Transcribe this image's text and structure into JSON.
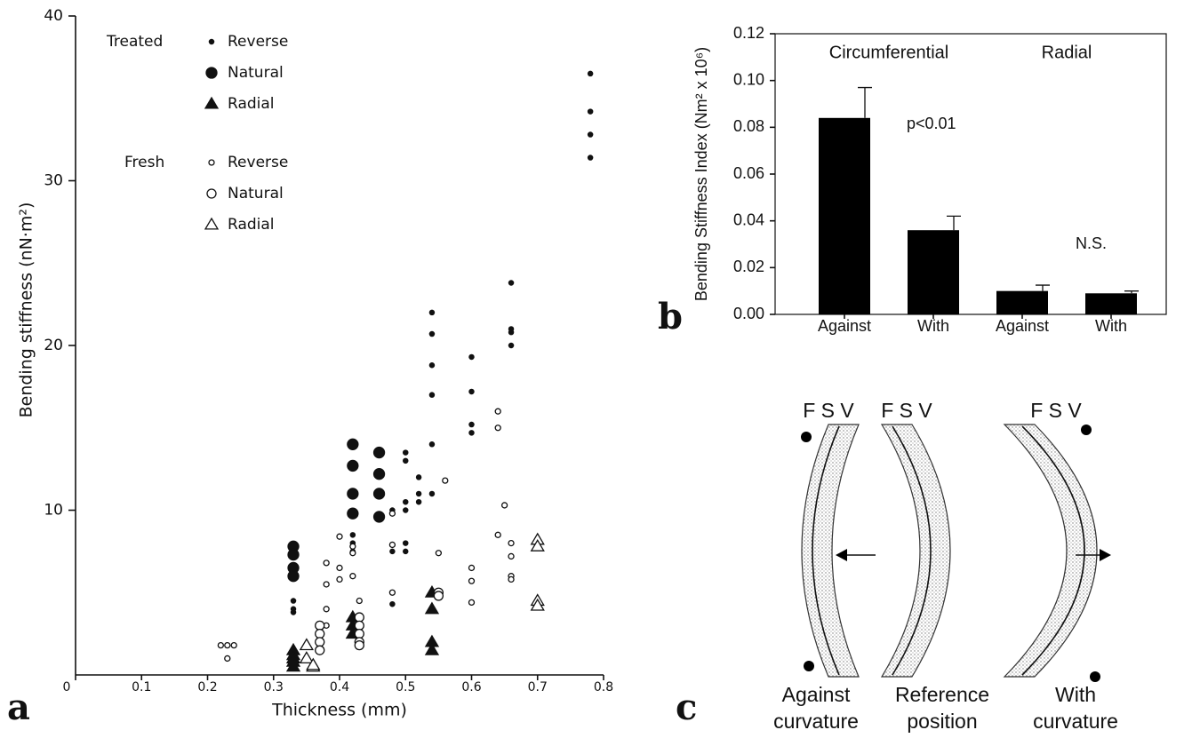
{
  "panel_labels": [
    "a",
    "b",
    "c"
  ],
  "chart_data": [
    {
      "type": "scatter",
      "xlabel": "Thickness (mm)",
      "ylabel": "Bending stiffness (nN·m²)",
      "xlim": [
        0,
        0.8
      ],
      "xticks": [
        0,
        0.1,
        0.2,
        0.3,
        0.4,
        0.5,
        0.6,
        0.7,
        0.8
      ],
      "ylim": [
        0,
        40
      ],
      "yticks": [
        10,
        20,
        30,
        40
      ],
      "legend_groups": [
        "Treated",
        "Fresh"
      ],
      "series": [
        {
          "name": "Reverse",
          "group": "Treated",
          "marker": "dot",
          "filled": true,
          "color": "#111111",
          "x": [
            0.33,
            0.33,
            0.33,
            0.42,
            0.42,
            0.42,
            0.42,
            0.48,
            0.48,
            0.48,
            0.5,
            0.5,
            0.5,
            0.5,
            0.5,
            0.5,
            0.52,
            0.52,
            0.52,
            0.54,
            0.54,
            0.54,
            0.54,
            0.54,
            0.54,
            0.6,
            0.6,
            0.6,
            0.6,
            0.66,
            0.66,
            0.66,
            0.66,
            0.78,
            0.78,
            0.78,
            0.78
          ],
          "values": [
            4.5,
            4,
            3.8,
            8.5,
            8,
            7.5,
            6,
            10,
            7.5,
            4.3,
            13.5,
            13,
            10.5,
            10,
            8,
            7.5,
            12,
            11,
            10.5,
            22,
            20.7,
            18.8,
            17,
            14,
            11,
            19.3,
            17.2,
            15.2,
            14.7,
            23.8,
            21,
            20.8,
            20,
            36.5,
            34.2,
            32.8,
            31.4
          ]
        },
        {
          "name": "Natural",
          "group": "Treated",
          "marker": "circle",
          "filled": true,
          "color": "#111111",
          "x": [
            0.33,
            0.33,
            0.33,
            0.33,
            0.42,
            0.42,
            0.42,
            0.42,
            0.46,
            0.46,
            0.46,
            0.46
          ],
          "values": [
            7.8,
            7.3,
            6.5,
            6,
            14,
            12.7,
            11,
            9.8,
            13.5,
            12.2,
            11,
            9.6
          ]
        },
        {
          "name": "Radial",
          "group": "Treated",
          "marker": "triangle",
          "filled": true,
          "color": "#111111",
          "x": [
            0.33,
            0.33,
            0.33,
            0.33,
            0.33,
            0.42,
            0.42,
            0.42,
            0.54,
            0.54,
            0.54,
            0.54
          ],
          "values": [
            1.5,
            1.2,
            1,
            0.8,
            0.5,
            3.5,
            3,
            2.5,
            5,
            4,
            2,
            1.5
          ]
        },
        {
          "name": "Reverse",
          "group": "Fresh",
          "marker": "dot",
          "filled": false,
          "color": "#111111",
          "x": [
            0.22,
            0.23,
            0.24,
            0.23,
            0.38,
            0.38,
            0.38,
            0.38,
            0.4,
            0.4,
            0.4,
            0.42,
            0.42,
            0.42,
            0.43,
            0.48,
            0.48,
            0.48,
            0.56,
            0.55,
            0.6,
            0.6,
            0.6,
            0.64,
            0.64,
            0.65,
            0.64,
            0.66,
            0.66,
            0.66,
            0.66
          ],
          "values": [
            1.8,
            1.8,
            1.8,
            1,
            6.8,
            5.5,
            4,
            3,
            8.4,
            6.5,
            5.8,
            7.8,
            7.4,
            6,
            4.5,
            9.8,
            7.9,
            5,
            11.8,
            7.4,
            6.5,
            5.7,
            4.4,
            16,
            15,
            10.3,
            8.5,
            8,
            7.2,
            6,
            5.8
          ]
        },
        {
          "name": "Natural",
          "group": "Fresh",
          "marker": "circle",
          "filled": false,
          "color": "#111111",
          "x": [
            0.37,
            0.37,
            0.37,
            0.37,
            0.43,
            0.43,
            0.43,
            0.43,
            0.43,
            0.55,
            0.55
          ],
          "values": [
            3,
            2.5,
            2,
            1.5,
            3.5,
            3,
            2.5,
            2,
            1.8,
            5,
            4.8
          ]
        },
        {
          "name": "Radial",
          "group": "Fresh",
          "marker": "triangle",
          "filled": false,
          "color": "#111111",
          "x": [
            0.35,
            0.35,
            0.36,
            0.36,
            0.7,
            0.7,
            0.7,
            0.7
          ],
          "values": [
            1.8,
            1,
            0.5,
            0.6,
            8.2,
            7.8,
            4.5,
            4.2
          ]
        }
      ]
    },
    {
      "type": "bar",
      "ylabel": "Bending Stiffness Index (Nm² x 10⁶)",
      "categories": [
        "Against",
        "With",
        "Against",
        "With"
      ],
      "values": [
        0.084,
        0.036,
        0.01,
        0.009
      ],
      "errors": [
        0.013,
        0.006,
        0.0025,
        0.001
      ],
      "color": "#000000",
      "ylim": [
        0,
        0.12
      ],
      "yticks": [
        {
          "value": 0,
          "label": "0.00"
        },
        {
          "value": 0.02,
          "label": "0.02"
        },
        {
          "value": 0.04,
          "label": "0.04"
        },
        {
          "value": 0.06,
          "label": "0.06"
        },
        {
          "value": 0.08,
          "label": "0.08"
        },
        {
          "value": 0.1,
          "label": "0.10"
        },
        {
          "value": 0.12,
          "label": "0.12"
        }
      ],
      "annotations": [
        "Circumferential",
        "Radial",
        "p<0.01",
        "N.S."
      ]
    }
  ],
  "diagram": {
    "layer_labels": [
      "F S V",
      "F S V",
      "F S V"
    ],
    "captions": [
      [
        "Against",
        "curvature"
      ],
      [
        "Reference",
        "position"
      ],
      [
        "With",
        "curvature"
      ]
    ]
  }
}
